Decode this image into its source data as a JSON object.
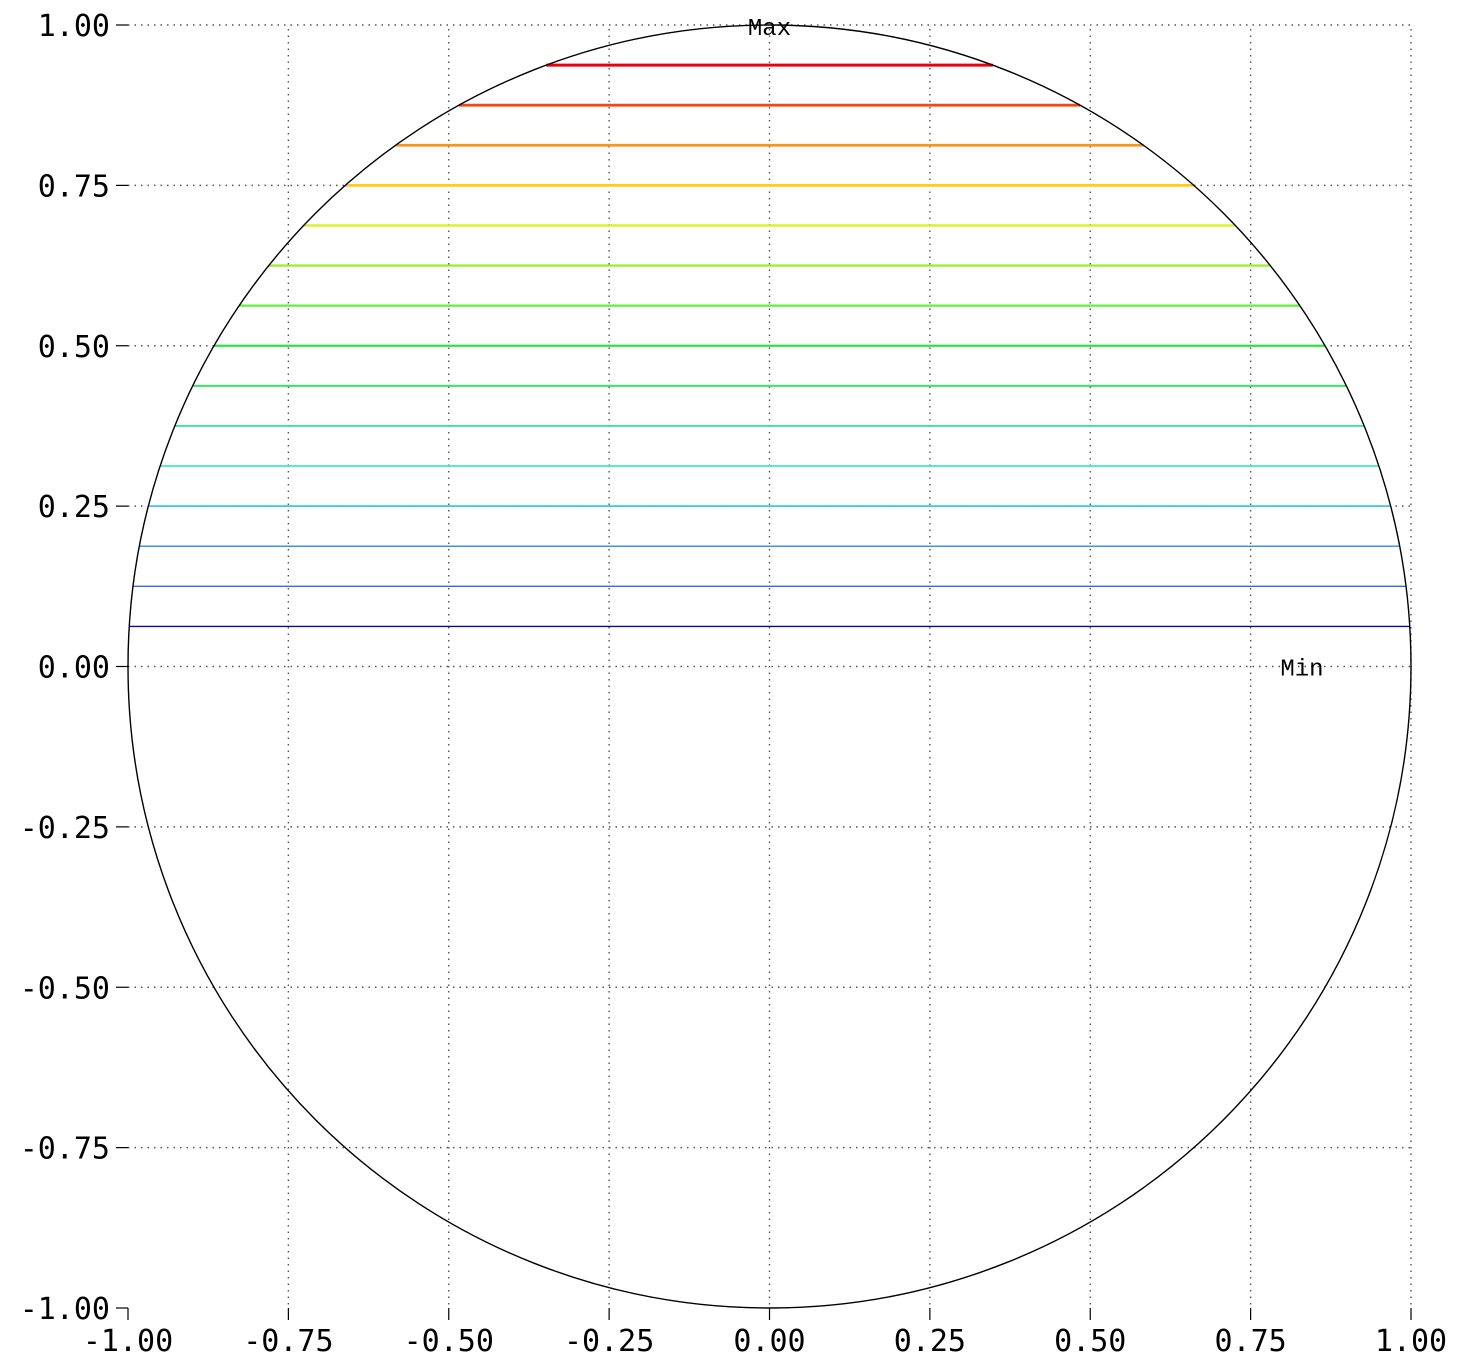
{
  "chart_data": {
    "type": "line",
    "title": "",
    "xlabel": "",
    "ylabel": "",
    "xlim": [
      -1.0,
      1.0
    ],
    "ylim": [
      -1.0,
      1.0
    ],
    "grid": true,
    "grid_style": "dotted",
    "x_ticks": [
      -1.0,
      -0.75,
      -0.5,
      -0.25,
      0.0,
      0.25,
      0.5,
      0.75,
      1.0
    ],
    "y_ticks": [
      -1.0,
      -0.75,
      -0.5,
      -0.25,
      0.0,
      0.25,
      0.5,
      0.75,
      1.0
    ],
    "x_tick_labels": [
      "-1.00",
      "-0.75",
      "-0.50",
      "-0.25",
      "0.00",
      "0.25",
      "0.50",
      "0.75",
      "1.00"
    ],
    "y_tick_labels": [
      "-1.00",
      "-0.75",
      "-0.50",
      "-0.25",
      "0.00",
      "0.25",
      "0.50",
      "0.75",
      "1.00"
    ],
    "boundary": {
      "shape": "circle",
      "center": [
        0,
        0
      ],
      "radius": 1.0,
      "color": "#000000"
    },
    "contour_levels": [
      {
        "y": 0.9375,
        "color": "#e8000a"
      },
      {
        "y": 0.875,
        "color": "#f04a14"
      },
      {
        "y": 0.8125,
        "color": "#f5961e"
      },
      {
        "y": 0.75,
        "color": "#ffcc18"
      },
      {
        "y": 0.6875,
        "color": "#e0ef2c"
      },
      {
        "y": 0.625,
        "color": "#9cf032"
      },
      {
        "y": 0.5625,
        "color": "#5ef03c"
      },
      {
        "y": 0.5,
        "color": "#32e046"
      },
      {
        "y": 0.4375,
        "color": "#32e866"
      },
      {
        "y": 0.375,
        "color": "#3ce894"
      },
      {
        "y": 0.3125,
        "color": "#40e8c0"
      },
      {
        "y": 0.25,
        "color": "#3cc8e0"
      },
      {
        "y": 0.1875,
        "color": "#3c96e6"
      },
      {
        "y": 0.125,
        "color": "#3c64e6"
      },
      {
        "y": 0.0625,
        "color": "#0a0a96"
      }
    ],
    "annotations": [
      {
        "text": "Max",
        "x": 0.0,
        "y": 1.0
      },
      {
        "text": "Min",
        "x": 0.83,
        "y": 0.0
      }
    ]
  }
}
